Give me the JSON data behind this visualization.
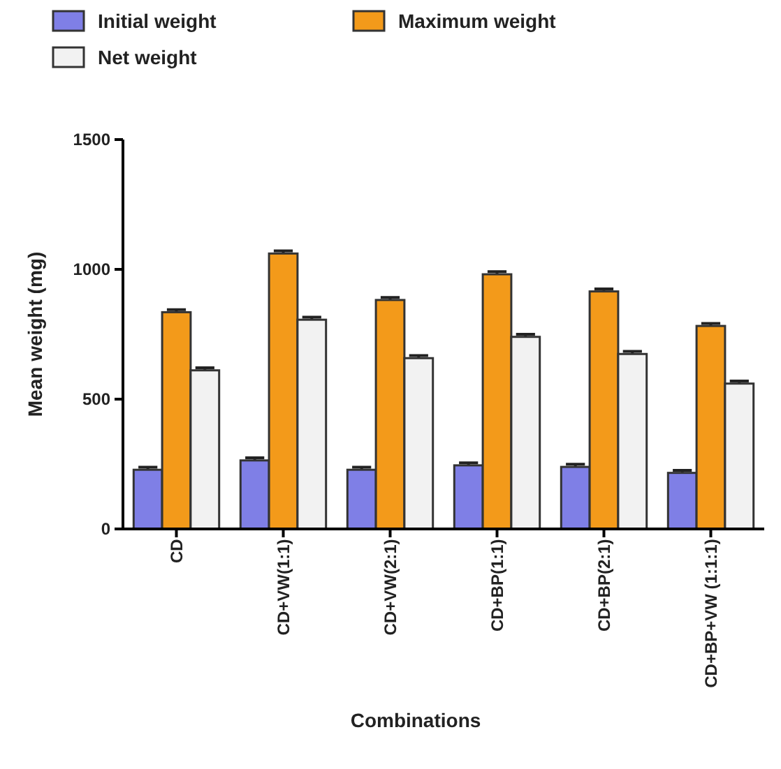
{
  "chart_data": {
    "type": "bar",
    "xlabel": "Combinations",
    "ylabel": "Mean weight (mg)",
    "categories": [
      "CD",
      "CD+VW(1:1)",
      "CD+VW(2:1)",
      "CD+BP(1:1)",
      "CD+BP(2:1)",
      "CD+BP+VW (1:1:1)"
    ],
    "series": [
      {
        "name": "Initial weight",
        "color": "#7f7fe6",
        "values": [
          228,
          264,
          228,
          245,
          239,
          216
        ],
        "errors": [
          10,
          10,
          10,
          10,
          10,
          10
        ]
      },
      {
        "name": "Maximum weight",
        "color": "#f39a1a",
        "values": [
          835,
          1061,
          882,
          981,
          915,
          782
        ],
        "errors": [
          10,
          10,
          10,
          10,
          10,
          10
        ]
      },
      {
        "name": "Net weight",
        "color": "#f2f2f2",
        "values": [
          611,
          806,
          658,
          740,
          674,
          560
        ],
        "errors": [
          10,
          10,
          10,
          10,
          10,
          10
        ]
      }
    ],
    "ylim": [
      0,
      1500
    ],
    "yticks": [
      0,
      500,
      1000,
      1500
    ],
    "grid": false,
    "legend": "top"
  }
}
